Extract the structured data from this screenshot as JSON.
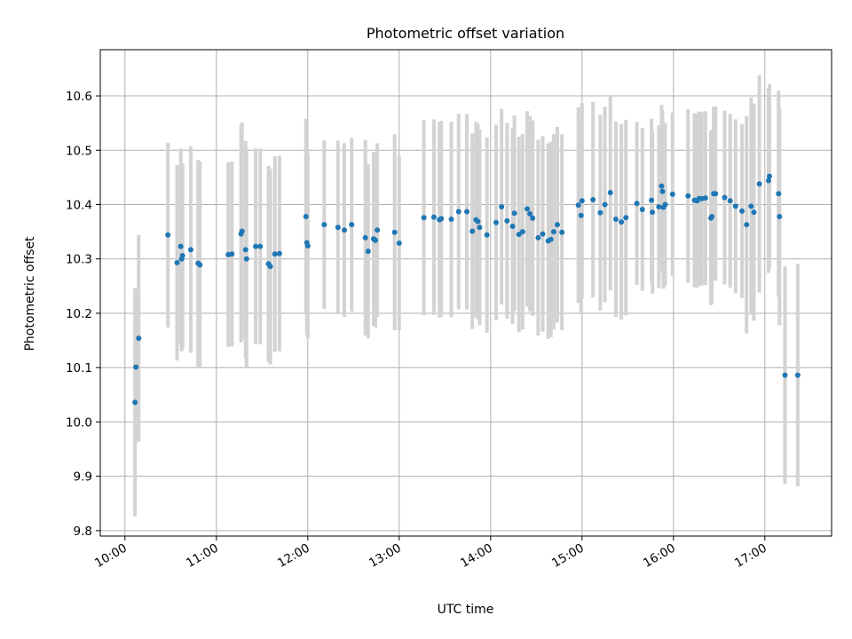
{
  "chart_data": {
    "type": "scatter",
    "title": "Photometric offset variation",
    "xlabel": "UTC time",
    "ylabel": "Photometric offset",
    "x_unit": "UTC hours",
    "xlim": [
      9.73,
      17.73
    ],
    "ylim": [
      9.79,
      10.685
    ],
    "grid": true,
    "colors": {
      "point": "#1f77b4",
      "errorbar": "#d3d3d3",
      "grid": "#b0b0b0"
    },
    "xticks": [
      {
        "value": 10,
        "label": "10:00"
      },
      {
        "value": 11,
        "label": "11:00"
      },
      {
        "value": 12,
        "label": "12:00"
      },
      {
        "value": 13,
        "label": "13:00"
      },
      {
        "value": 14,
        "label": "14:00"
      },
      {
        "value": 15,
        "label": "15:00"
      },
      {
        "value": 16,
        "label": "16:00"
      },
      {
        "value": 17,
        "label": "17:00"
      }
    ],
    "yticks": [
      {
        "value": 9.8,
        "label": "9.8"
      },
      {
        "value": 9.9,
        "label": "9.9"
      },
      {
        "value": 10.0,
        "label": "10.0"
      },
      {
        "value": 10.1,
        "label": "10.1"
      },
      {
        "value": 10.2,
        "label": "10.2"
      },
      {
        "value": 10.3,
        "label": "10.3"
      },
      {
        "value": 10.4,
        "label": "10.4"
      },
      {
        "value": 10.5,
        "label": "10.5"
      },
      {
        "value": 10.6,
        "label": "10.6"
      }
    ],
    "series": [
      {
        "x": [
          10.11,
          10.12,
          10.15,
          10.47,
          10.57,
          10.61,
          10.62,
          10.63,
          10.72,
          10.8,
          10.82,
          11.13,
          11.17,
          11.27,
          11.28,
          11.32,
          11.33,
          11.43,
          11.48,
          11.57,
          11.59,
          11.64,
          11.69,
          11.98,
          11.99,
          12.0,
          12.18,
          12.33,
          12.4,
          12.48,
          12.63,
          12.66,
          12.72,
          12.74,
          12.76,
          12.95,
          13.0,
          13.27,
          13.38,
          13.44,
          13.46,
          13.57,
          13.65,
          13.74,
          13.8,
          13.84,
          13.86,
          13.88,
          13.96,
          14.06,
          14.12,
          14.18,
          14.24,
          14.26,
          14.31,
          14.35,
          14.4,
          14.43,
          14.46,
          14.52,
          14.57,
          14.63,
          14.66,
          14.69,
          14.73,
          14.78,
          14.96,
          14.99,
          15.0,
          15.12,
          15.2,
          15.25,
          15.31,
          15.37,
          15.43,
          15.48,
          15.6,
          15.66,
          15.76,
          15.77,
          15.84,
          15.87,
          15.88,
          15.89,
          15.91,
          15.99,
          16.16,
          16.23,
          16.26,
          16.28,
          16.31,
          16.35,
          16.41,
          16.42,
          16.44,
          16.46,
          16.56,
          16.62,
          16.68,
          16.75,
          16.8,
          16.85,
          16.88,
          16.94,
          17.04,
          17.05,
          17.15,
          17.16,
          17.22,
          17.36
        ],
        "y": [
          10.036,
          10.101,
          10.154,
          10.344,
          10.293,
          10.323,
          10.3,
          10.306,
          10.317,
          10.292,
          10.289,
          10.308,
          10.309,
          10.346,
          10.351,
          10.317,
          10.3,
          10.323,
          10.323,
          10.291,
          10.286,
          10.309,
          10.31,
          10.378,
          10.33,
          10.324,
          10.363,
          10.358,
          10.353,
          10.363,
          10.339,
          10.314,
          10.337,
          10.334,
          10.353,
          10.349,
          10.329,
          10.376,
          10.377,
          10.372,
          10.374,
          10.373,
          10.387,
          10.387,
          10.351,
          10.372,
          10.369,
          10.358,
          10.344,
          10.367,
          10.396,
          10.37,
          10.36,
          10.384,
          10.345,
          10.35,
          10.392,
          10.383,
          10.375,
          10.339,
          10.346,
          10.333,
          10.336,
          10.35,
          10.363,
          10.349,
          10.399,
          10.38,
          10.407,
          10.409,
          10.385,
          10.4,
          10.422,
          10.373,
          10.368,
          10.376,
          10.402,
          10.391,
          10.408,
          10.386,
          10.396,
          10.434,
          10.424,
          10.395,
          10.4,
          10.419,
          10.416,
          10.408,
          10.407,
          10.411,
          10.411,
          10.412,
          10.375,
          10.378,
          10.42,
          10.42,
          10.413,
          10.407,
          10.397,
          10.388,
          10.363,
          10.397,
          10.386,
          10.438,
          10.444,
          10.452,
          10.42,
          10.378,
          10.086,
          10.086
        ],
        "err": [
          0.21,
          0.14,
          0.19,
          0.17,
          0.18,
          0.18,
          0.17,
          0.17,
          0.19,
          0.19,
          0.19,
          0.17,
          0.17,
          0.2,
          0.2,
          0.2,
          0.2,
          0.18,
          0.18,
          0.18,
          0.18,
          0.18,
          0.18,
          0.18,
          0.17,
          0.17,
          0.155,
          0.16,
          0.16,
          0.16,
          0.18,
          0.16,
          0.16,
          0.16,
          0.16,
          0.18,
          0.16,
          0.18,
          0.18,
          0.18,
          0.18,
          0.18,
          0.18,
          0.18,
          0.18,
          0.18,
          0.18,
          0.18,
          0.18,
          0.18,
          0.18,
          0.18,
          0.18,
          0.18,
          0.18,
          0.18,
          0.18,
          0.18,
          0.18,
          0.18,
          0.18,
          0.18,
          0.18,
          0.18,
          0.18,
          0.18,
          0.18,
          0.18,
          0.18,
          0.18,
          0.18,
          0.18,
          0.18,
          0.18,
          0.18,
          0.18,
          0.15,
          0.15,
          0.15,
          0.15,
          0.15,
          0.15,
          0.15,
          0.15,
          0.15,
          0.15,
          0.16,
          0.16,
          0.16,
          0.16,
          0.16,
          0.16,
          0.16,
          0.16,
          0.16,
          0.16,
          0.16,
          0.16,
          0.16,
          0.16,
          0.2,
          0.2,
          0.2,
          0.2,
          0.17,
          0.17,
          0.19,
          0.2,
          0.2,
          0.205
        ]
      }
    ]
  }
}
